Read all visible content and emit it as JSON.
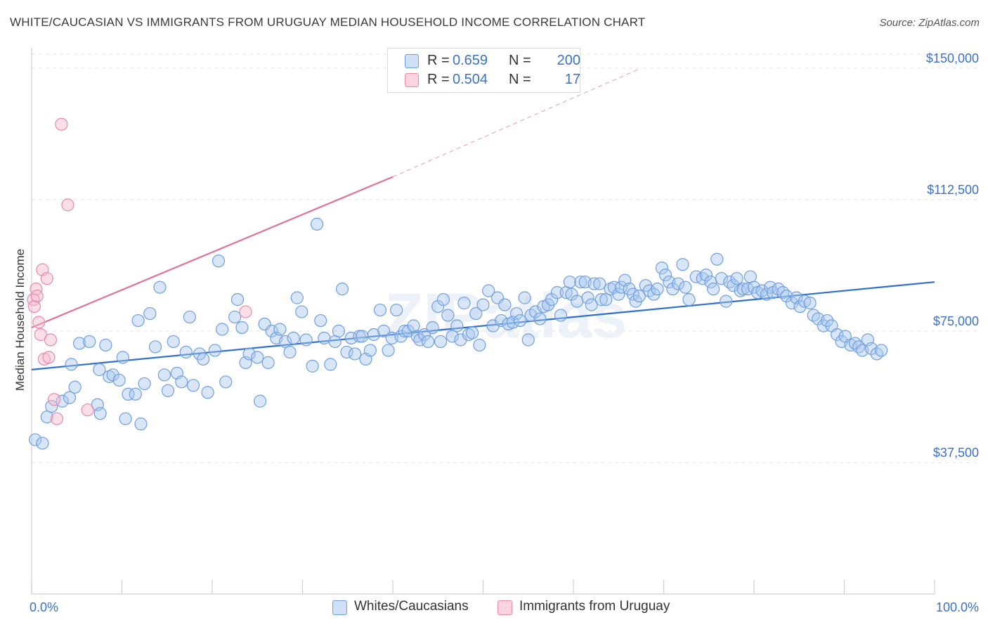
{
  "header": {
    "title": "WHITE/CAUCASIAN VS IMMIGRANTS FROM URUGUAY MEDIAN HOUSEHOLD INCOME CORRELATION CHART",
    "source": "Source: ZipAtlas.com"
  },
  "legend": {
    "rows": [
      {
        "r_label": "R =",
        "r_value": "0.659",
        "n_label": "N =",
        "n_value": "200",
        "color": "#a9c7f0"
      },
      {
        "r_label": "R =",
        "r_value": "0.504",
        "n_label": "N =",
        "n_value": "17",
        "color": "#f6b8cb"
      }
    ]
  },
  "bottom_legend": [
    {
      "label": "Whites/Caucasians",
      "color": "#a9c7f0"
    },
    {
      "label": "Immigrants from Uruguay",
      "color": "#f6b8cb"
    }
  ],
  "watermark": "ZIPatlas",
  "chart_data": {
    "type": "scatter",
    "title": "WHITE/CAUCASIAN VS IMMIGRANTS FROM URUGUAY MEDIAN HOUSEHOLD INCOME CORRELATION CHART",
    "xlabel": "",
    "ylabel": "Median Household Income",
    "xlim": [
      0,
      100
    ],
    "ylim": [
      0,
      152000
    ],
    "x_tick_labels": [
      "0.0%",
      "100.0%"
    ],
    "y_ticks": [
      37500,
      75000,
      112500,
      150000
    ],
    "y_tick_labels": [
      "$37,500",
      "$75,000",
      "$112,500",
      "$150,000"
    ],
    "grid": true,
    "legend_position": "top-center",
    "series": [
      {
        "name": "Whites/Caucasians",
        "color": "#a9c7f0",
        "edge": "#6f9fe0",
        "trend": {
          "x": [
            0,
            100
          ],
          "y": [
            64000,
            89000
          ],
          "color": "#2f6fce"
        },
        "points": [
          [
            0.4,
            44000
          ],
          [
            1.2,
            43000
          ],
          [
            1.7,
            50500
          ],
          [
            2.2,
            53500
          ],
          [
            3.4,
            55000
          ],
          [
            4.2,
            56000
          ],
          [
            4.4,
            65500
          ],
          [
            4.8,
            59000
          ],
          [
            5.3,
            71500
          ],
          [
            6.4,
            72000
          ],
          [
            7.3,
            54000
          ],
          [
            7.6,
            51500
          ],
          [
            7.5,
            64000
          ],
          [
            8.2,
            71000
          ],
          [
            8.6,
            62000
          ],
          [
            9.0,
            62500
          ],
          [
            9.7,
            61000
          ],
          [
            10.1,
            67500
          ],
          [
            10.4,
            50000
          ],
          [
            10.7,
            57000
          ],
          [
            11.5,
            57000
          ],
          [
            11.8,
            78000
          ],
          [
            12.1,
            48500
          ],
          [
            12.5,
            60000
          ],
          [
            13.1,
            80000
          ],
          [
            13.7,
            70500
          ],
          [
            14.2,
            87500
          ],
          [
            14.7,
            62500
          ],
          [
            15.1,
            58000
          ],
          [
            15.7,
            72000
          ],
          [
            16.1,
            63000
          ],
          [
            16.6,
            60500
          ],
          [
            17.1,
            69000
          ],
          [
            17.5,
            79000
          ],
          [
            17.9,
            59500
          ],
          [
            18.6,
            68500
          ],
          [
            19.0,
            67000
          ],
          [
            19.5,
            57500
          ],
          [
            20.3,
            69500
          ],
          [
            20.7,
            95000
          ],
          [
            21.1,
            75500
          ],
          [
            21.5,
            60500
          ],
          [
            22.5,
            79000
          ],
          [
            22.8,
            84000
          ],
          [
            23.3,
            76000
          ],
          [
            23.7,
            66000
          ],
          [
            24.1,
            68500
          ],
          [
            25.0,
            67500
          ],
          [
            25.3,
            55000
          ],
          [
            25.8,
            77000
          ],
          [
            26.2,
            66000
          ],
          [
            26.6,
            75000
          ],
          [
            27.1,
            73000
          ],
          [
            27.5,
            75500
          ],
          [
            28.1,
            72000
          ],
          [
            28.6,
            69000
          ],
          [
            29.0,
            73000
          ],
          [
            29.4,
            84500
          ],
          [
            29.9,
            80500
          ],
          [
            30.4,
            72500
          ],
          [
            31.1,
            65000
          ],
          [
            31.6,
            105500
          ],
          [
            32.0,
            78000
          ],
          [
            32.4,
            73000
          ],
          [
            33.1,
            65500
          ],
          [
            33.6,
            72000
          ],
          [
            34.0,
            75000
          ],
          [
            34.4,
            87000
          ],
          [
            34.9,
            69000
          ],
          [
            35.4,
            73000
          ],
          [
            35.8,
            68500
          ],
          [
            36.3,
            73500
          ],
          [
            36.6,
            73500
          ],
          [
            37.0,
            67000
          ],
          [
            37.5,
            69500
          ],
          [
            37.9,
            74000
          ],
          [
            38.6,
            81000
          ],
          [
            39.0,
            75000
          ],
          [
            39.5,
            69500
          ],
          [
            39.9,
            73000
          ],
          [
            40.4,
            81000
          ],
          [
            40.9,
            73500
          ],
          [
            41.3,
            75000
          ],
          [
            41.7,
            75000
          ],
          [
            42.3,
            76500
          ],
          [
            42.7,
            73500
          ],
          [
            43.0,
            72500
          ],
          [
            43.5,
            74000
          ],
          [
            43.9,
            72000
          ],
          [
            44.4,
            76000
          ],
          [
            45.0,
            82000
          ],
          [
            45.3,
            72000
          ],
          [
            45.6,
            84000
          ],
          [
            46.1,
            79500
          ],
          [
            46.6,
            73500
          ],
          [
            47.1,
            76500
          ],
          [
            47.5,
            72500
          ],
          [
            47.9,
            83000
          ],
          [
            48.4,
            74000
          ],
          [
            48.8,
            74500
          ],
          [
            49.2,
            80000
          ],
          [
            49.6,
            71000
          ],
          [
            50.0,
            82500
          ],
          [
            50.6,
            86500
          ],
          [
            51.1,
            76500
          ],
          [
            51.6,
            84500
          ],
          [
            52.0,
            78000
          ],
          [
            52.4,
            82500
          ],
          [
            52.8,
            77000
          ],
          [
            53.3,
            77500
          ],
          [
            53.7,
            80000
          ],
          [
            54.1,
            78000
          ],
          [
            54.6,
            84500
          ],
          [
            55.0,
            72500
          ],
          [
            55.3,
            79500
          ],
          [
            55.8,
            80500
          ],
          [
            56.3,
            78500
          ],
          [
            56.7,
            82000
          ],
          [
            57.2,
            82500
          ],
          [
            57.6,
            84000
          ],
          [
            58.2,
            86000
          ],
          [
            58.6,
            79500
          ],
          [
            59.2,
            86000
          ],
          [
            59.6,
            89000
          ],
          [
            59.8,
            85500
          ],
          [
            60.4,
            83500
          ],
          [
            60.8,
            89000
          ],
          [
            61.3,
            89000
          ],
          [
            61.6,
            84500
          ],
          [
            62.0,
            82500
          ],
          [
            62.3,
            88500
          ],
          [
            62.9,
            88500
          ],
          [
            63.1,
            84000
          ],
          [
            63.6,
            84000
          ],
          [
            64.1,
            87000
          ],
          [
            64.5,
            87500
          ],
          [
            65.0,
            85500
          ],
          [
            65.3,
            87500
          ],
          [
            65.7,
            89500
          ],
          [
            66.2,
            87000
          ],
          [
            66.6,
            85500
          ],
          [
            66.9,
            83500
          ],
          [
            67.3,
            85000
          ],
          [
            68.0,
            88000
          ],
          [
            68.4,
            86500
          ],
          [
            68.9,
            85500
          ],
          [
            69.3,
            87000
          ],
          [
            69.8,
            93000
          ],
          [
            70.2,
            91000
          ],
          [
            70.6,
            89000
          ],
          [
            71.0,
            87000
          ],
          [
            71.6,
            88500
          ],
          [
            72.1,
            94000
          ],
          [
            72.4,
            87500
          ],
          [
            72.8,
            84000
          ],
          [
            73.6,
            90500
          ],
          [
            74.3,
            90000
          ],
          [
            74.7,
            91000
          ],
          [
            75.2,
            89000
          ],
          [
            75.5,
            87000
          ],
          [
            75.9,
            95500
          ],
          [
            76.4,
            90000
          ],
          [
            76.9,
            83500
          ],
          [
            77.3,
            89000
          ],
          [
            77.7,
            88000
          ],
          [
            78.1,
            90000
          ],
          [
            78.5,
            86500
          ],
          [
            78.8,
            87000
          ],
          [
            79.3,
            87000
          ],
          [
            79.6,
            90500
          ],
          [
            80.0,
            87500
          ],
          [
            80.4,
            86000
          ],
          [
            80.9,
            86500
          ],
          [
            81.4,
            85500
          ],
          [
            81.8,
            87500
          ],
          [
            82.1,
            86000
          ],
          [
            82.7,
            87000
          ],
          [
            83.2,
            86000
          ],
          [
            83.6,
            85000
          ],
          [
            84.2,
            83000
          ],
          [
            84.7,
            84500
          ],
          [
            85.1,
            82000
          ],
          [
            85.6,
            83500
          ],
          [
            86.2,
            83000
          ],
          [
            86.6,
            79500
          ],
          [
            87.1,
            78500
          ],
          [
            87.7,
            76500
          ],
          [
            88.1,
            78000
          ],
          [
            88.6,
            76500
          ],
          [
            89.2,
            74000
          ],
          [
            89.7,
            72000
          ],
          [
            90.1,
            73500
          ],
          [
            90.7,
            71000
          ],
          [
            91.2,
            71500
          ],
          [
            91.6,
            70500
          ],
          [
            92.0,
            69500
          ],
          [
            92.6,
            72500
          ],
          [
            93.0,
            70000
          ],
          [
            93.6,
            68500
          ],
          [
            94.1,
            69500
          ]
        ]
      },
      {
        "name": "Immigrants from Uruguay",
        "color": "#f6b8cb",
        "edge": "#e88aa8",
        "trend": {
          "x": [
            0,
            40
          ],
          "y": [
            76000,
            119000
          ],
          "color": "#e07197",
          "dashed_to": {
            "x": 67.5,
            "y": 150000
          }
        },
        "points": [
          [
            0.2,
            84000
          ],
          [
            0.3,
            82000
          ],
          [
            0.5,
            87000
          ],
          [
            0.6,
            85000
          ],
          [
            0.8,
            77500
          ],
          [
            1.0,
            74000
          ],
          [
            1.2,
            92500
          ],
          [
            1.4,
            67000
          ],
          [
            1.7,
            90000
          ],
          [
            1.9,
            67500
          ],
          [
            2.1,
            72500
          ],
          [
            2.5,
            55500
          ],
          [
            2.8,
            50000
          ],
          [
            3.3,
            134000
          ],
          [
            4.0,
            111000
          ],
          [
            6.2,
            52500
          ],
          [
            23.7,
            80500
          ]
        ]
      }
    ]
  }
}
